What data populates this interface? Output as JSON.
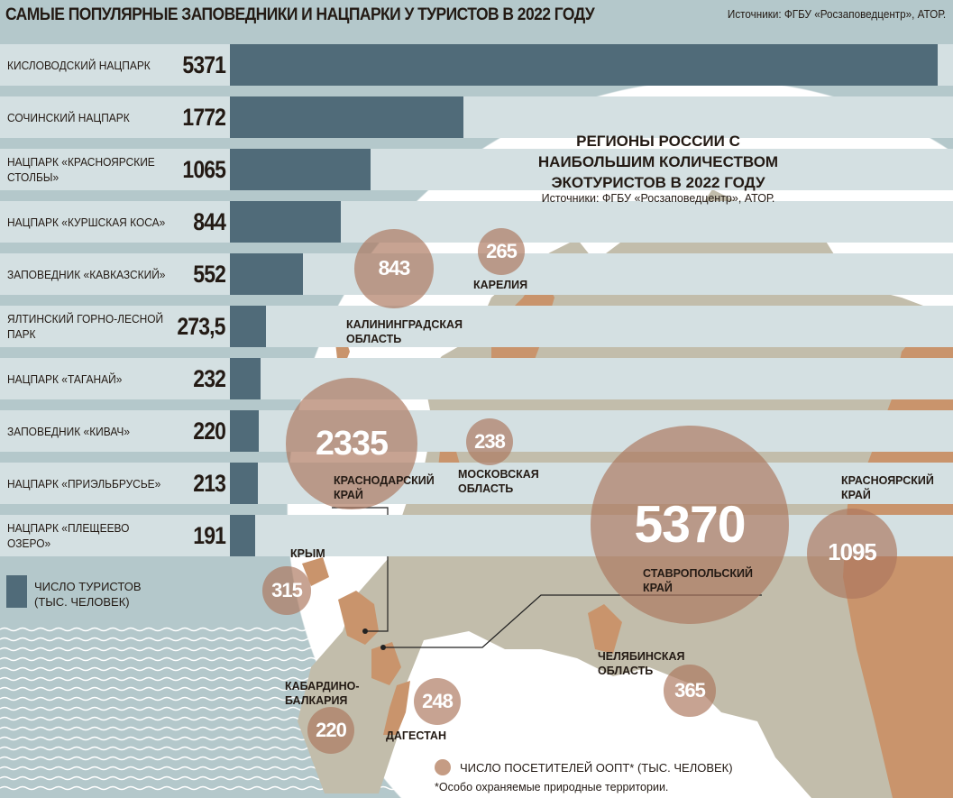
{
  "title": "САМЫЕ ПОПУЛЯРНЫЕ ЗАПОВЕДНИКИ И НАЦПАРКИ У ТУРИСТОВ В 2022 ГОДУ",
  "source": "Источники: ФГБУ «Росзаповедцентр», АТОР.",
  "colors": {
    "bar": "#506b79",
    "lane": "#d4e0e2",
    "background": "#b4c8cb",
    "bubble": "#ac785f",
    "region_highlight": "#c9946c",
    "map": "#c2bdab"
  },
  "chart_data": [
    {
      "type": "bar",
      "orientation": "horizontal",
      "unit": "тыс. человек",
      "categories": [
        "КИСЛОВОДСКИЙ НАЦПАРК",
        "СОЧИНСКИЙ НАЦПАРК",
        "НАЦПАРК «КРАСНОЯРСКИЕ СТОЛБЫ»",
        "НАЦПАРК «КУРШСКАЯ КОСА»",
        "ЗАПОВЕДНИК «КАВКАЗСКИЙ»",
        "ЯЛТИНСКИЙ ГОРНО-ЛЕСНОЙ ПАРК",
        "НАЦПАРК «ТАГАНАЙ»",
        "ЗАПОВЕДНИК «КИВАЧ»",
        "НАЦПАРК «ПРИЭЛЬБРУСЬЕ»",
        "НАЦПАРК «ПЛЕЩЕЕВО ОЗЕРО»"
      ],
      "values": [
        5371,
        1772,
        1065,
        844,
        552,
        273.5,
        232,
        220,
        213,
        191
      ],
      "value_labels": [
        "5371",
        "1772",
        "1065",
        "844",
        "552",
        "273,5",
        "232",
        "220",
        "213",
        "191"
      ],
      "legend": "ЧИСЛО ТУРИСТОВ (ТЫС. ЧЕЛОВЕК)"
    },
    {
      "type": "bubble-map",
      "title": "РЕГИОНЫ РОССИИ С НАИБОЛЬШИМ КОЛИЧЕСТВОМ ЭКОТУРИСТОВ В 2022 ГОДУ",
      "source": "Источники: ФГБУ «Росзаповедцентр», АТОР.",
      "regions": [
        {
          "name": "СТАВРОПОЛЬСКИЙ КРАЙ",
          "value": 5370
        },
        {
          "name": "КРАСНОДАРСКИЙ КРАЙ",
          "value": 2335
        },
        {
          "name": "КРАСНОЯРСКИЙ КРАЙ",
          "value": 1095
        },
        {
          "name": "КАЛИНИНГРАДСКАЯ ОБЛАСТЬ",
          "value": 843
        },
        {
          "name": "ЧЕЛЯБИНСКАЯ ОБЛАСТЬ",
          "value": 365
        },
        {
          "name": "КРЫМ",
          "value": 315
        },
        {
          "name": "КАРЕЛИЯ",
          "value": 265
        },
        {
          "name": "ДАГЕСТАН",
          "value": 248
        },
        {
          "name": "МОСКОВСКАЯ ОБЛАСТЬ",
          "value": 238
        },
        {
          "name": "КАБАРДИНО-БАЛКАРИЯ",
          "value": 220
        }
      ],
      "legend": "ЧИСЛО ПОСЕТИТЕЛЕЙ ООПТ* (ТЫС. ЧЕЛОВЕК)",
      "footnote": "*Особо охраняемые природные территории."
    }
  ]
}
